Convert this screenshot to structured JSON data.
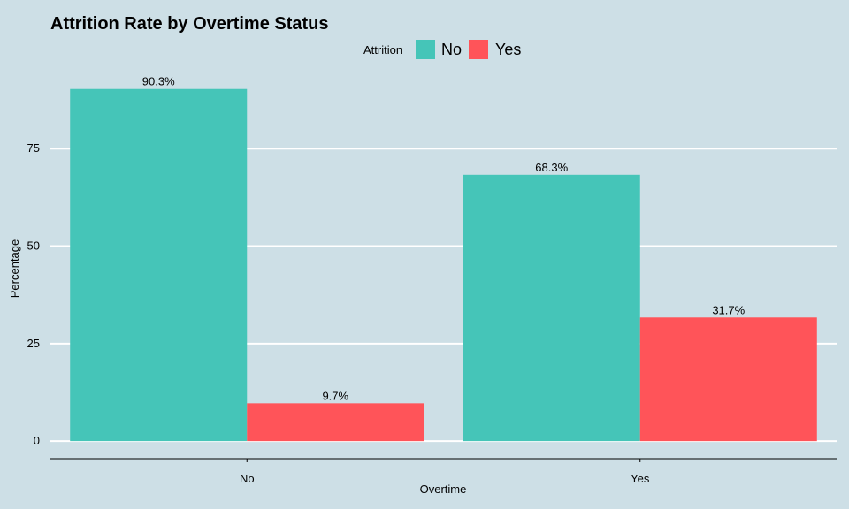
{
  "chart_data": {
    "type": "bar",
    "title": "Attrition Rate by Overtime Status",
    "xlabel": "Overtime",
    "ylabel": "Percentage",
    "categories": [
      "No",
      "Yes"
    ],
    "series": [
      {
        "name": "No",
        "values": [
          90.3,
          68.3
        ],
        "labels": [
          "90.3%",
          "68.3%"
        ],
        "color": "#45c5b8"
      },
      {
        "name": "Yes",
        "values": [
          9.7,
          31.7
        ],
        "labels": [
          "9.7%",
          "31.7%"
        ],
        "color": "#ff5459"
      }
    ],
    "legend_title": "Attrition",
    "legend_position": "top",
    "yticks": [
      0,
      25,
      50,
      75
    ],
    "ylim": [
      -4.5,
      95
    ],
    "grid": true
  },
  "colors": {
    "background": "#cddfe6",
    "grid": "#ffffff",
    "axis": "#000000"
  }
}
